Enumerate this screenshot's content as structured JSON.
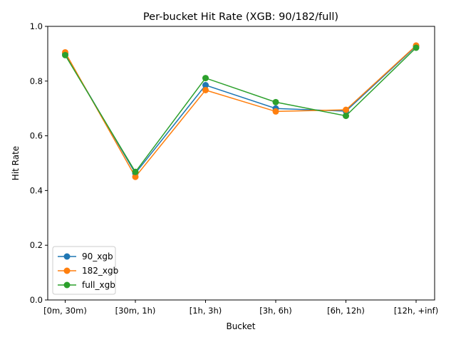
{
  "chart_data": {
    "type": "line",
    "title": "Per-bucket Hit Rate (XGB: 90/182/full)",
    "xlabel": "Bucket",
    "ylabel": "Hit Rate",
    "categories": [
      "[0m, 30m)",
      "[30m, 1h)",
      "[1h, 3h)",
      "[3h, 6h)",
      "[6h, 12h)",
      "[12h, +inf)"
    ],
    "ylim": [
      0.0,
      1.0
    ],
    "yticks": [
      "0.0",
      "0.2",
      "0.4",
      "0.6",
      "0.8",
      "1.0"
    ],
    "grid": false,
    "legend_position": "lower-left",
    "series": [
      {
        "name": "90_xgb",
        "color": "#1f77b4",
        "values": [
          0.9,
          0.463,
          0.785,
          0.7,
          0.69,
          0.928
        ]
      },
      {
        "name": "182_xgb",
        "color": "#ff7f0e",
        "values": [
          0.905,
          0.45,
          0.767,
          0.689,
          0.695,
          0.93
        ]
      },
      {
        "name": "full_xgb",
        "color": "#2ca02c",
        "values": [
          0.895,
          0.468,
          0.811,
          0.723,
          0.673,
          0.922
        ]
      }
    ]
  }
}
